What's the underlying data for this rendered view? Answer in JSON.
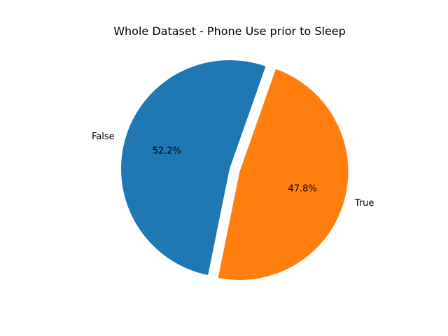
{
  "chart_data": {
    "type": "pie",
    "title": "Whole Dataset - Phone Use prior to Sleep",
    "categories": [
      "False",
      "True"
    ],
    "values": [
      52.2,
      47.8
    ],
    "percent_labels": [
      "52.2%",
      "47.8%"
    ],
    "colors": [
      "#1f77b4",
      "#ff7f0e"
    ],
    "exploded": [
      "True"
    ],
    "legend": "none"
  }
}
